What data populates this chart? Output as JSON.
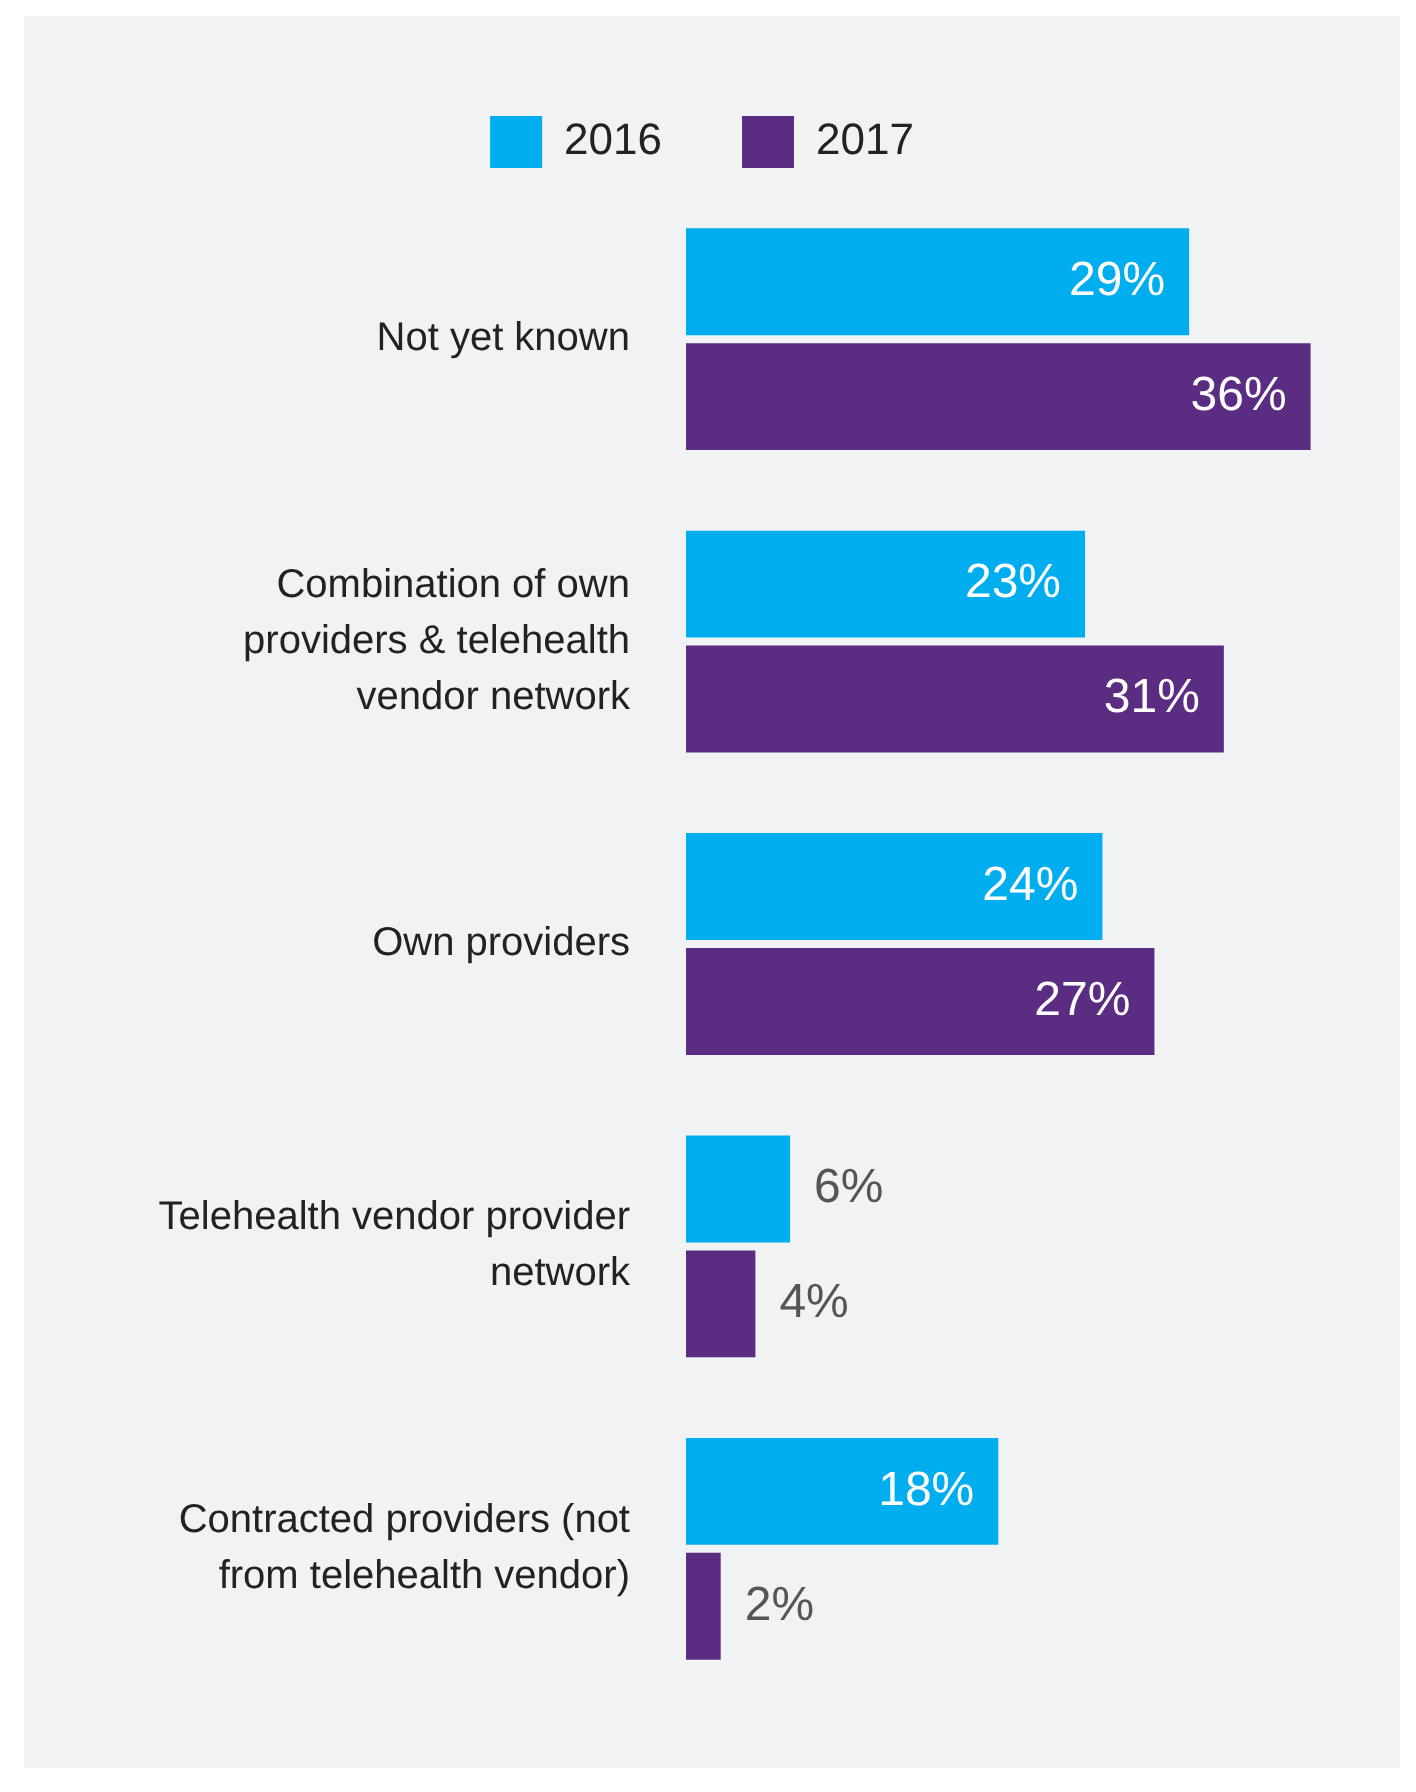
{
  "chart_data": {
    "type": "bar",
    "orientation": "horizontal",
    "categories": [
      "Not yet known",
      "Combination of own providers & telehealth vendor network",
      "Own providers",
      "Telehealth vendor provider network",
      "Contracted providers (not from telehealth vendor)"
    ],
    "series": [
      {
        "name": "2016",
        "color": "#00adef",
        "values": [
          29,
          23,
          24,
          6,
          18
        ],
        "value_labels": [
          "29%",
          "23%",
          "24%",
          "6%",
          "18%"
        ]
      },
      {
        "name": "2017",
        "color": "#5b2d82",
        "values": [
          36,
          31,
          27,
          4,
          2
        ],
        "value_labels": [
          "36%",
          "31%",
          "27%",
          "4%",
          "2%"
        ]
      }
    ],
    "tick_labels": "y",
    "legend": "top"
  }
}
